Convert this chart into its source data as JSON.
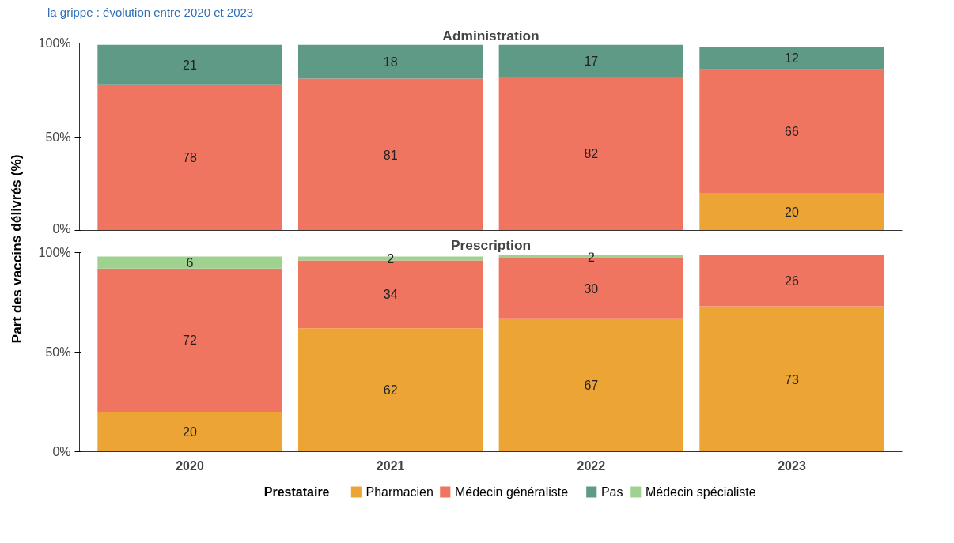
{
  "chart_data": [
    {
      "type": "bar",
      "title": "Administration",
      "annotations": [
        "la grippe : évolution entre 2020 et 2023"
      ],
      "ylabel": "Part des vaccins délivrés (%)",
      "categories": [
        "2020",
        "2021",
        "2022",
        "2023"
      ],
      "stacked": true,
      "data_labels": true,
      "ylim": [
        0,
        100
      ],
      "yticks": [
        {
          "value": 0,
          "label": "0%"
        },
        {
          "value": 50,
          "label": "50%"
        },
        {
          "value": 100,
          "label": "100%"
        }
      ],
      "grid": false,
      "tick_labels": "y",
      "legend": "bottom",
      "series": [
        {
          "name": "Pharmacien",
          "color": "#eca535",
          "values": [
            null,
            null,
            null,
            20
          ]
        },
        {
          "name": "Médecin généraliste",
          "color": "#f07560",
          "values": [
            78,
            81,
            82,
            66
          ]
        },
        {
          "name": "Pas",
          "color": "#5e9a86",
          "values": [
            21,
            18,
            17,
            12
          ]
        }
      ]
    },
    {
      "type": "bar",
      "title": "Prescription",
      "categories": [
        "2020",
        "2021",
        "2022",
        "2023"
      ],
      "stacked": true,
      "data_labels": true,
      "ylim": [
        0,
        100
      ],
      "yticks": [
        {
          "value": 0,
          "label": "0%"
        },
        {
          "value": 50,
          "label": "50%"
        },
        {
          "value": 100,
          "label": "100%"
        }
      ],
      "grid": false,
      "legend": "bottom",
      "legend_title": "Prestataire",
      "series": [
        {
          "name": "Pharmacien",
          "color": "#eca535",
          "values": [
            20,
            62,
            67,
            73
          ]
        },
        {
          "name": "Médecin généraliste",
          "color": "#f07560",
          "values": [
            72,
            34,
            30,
            26
          ]
        },
        {
          "name": "Médecin spécialiste",
          "color": "#9fd28f",
          "values": [
            6,
            2,
            2,
            null
          ]
        }
      ]
    }
  ]
}
